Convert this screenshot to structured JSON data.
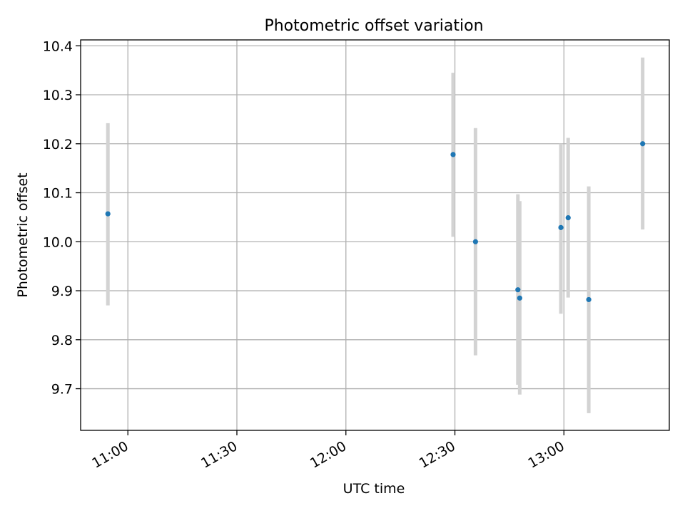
{
  "chart_data": {
    "type": "scatter",
    "title": "Photometric offset variation",
    "xlabel": "UTC time",
    "ylabel": "Photometric offset",
    "x_ticks": [
      "11:00",
      "11:30",
      "12:00",
      "12:30",
      "13:00"
    ],
    "y_ticks": [
      "9.7",
      "9.8",
      "9.9",
      "10.0",
      "10.1",
      "10.2",
      "10.3",
      "10.4"
    ],
    "xlim": [
      "10:47",
      "13:29"
    ],
    "ylim": [
      9.615,
      10.412
    ],
    "grid": true,
    "legend": "none",
    "colors": {
      "point": "#1f77b4",
      "errorbar": "#d3d3d3",
      "grid": "#b0b0b0"
    },
    "points": [
      {
        "x": "10:54:30",
        "y": 10.057,
        "err_low": 9.87,
        "err_high": 10.242
      },
      {
        "x": "12:29:30",
        "y": 10.178,
        "err_low": 10.01,
        "err_high": 10.345
      },
      {
        "x": "12:35:40",
        "y": 10.0,
        "err_low": 9.768,
        "err_high": 10.232
      },
      {
        "x": "12:47:20",
        "y": 9.902,
        "err_low": 9.708,
        "err_high": 10.097
      },
      {
        "x": "12:47:50",
        "y": 9.885,
        "err_low": 9.688,
        "err_high": 10.083
      },
      {
        "x": "12:59:10",
        "y": 10.029,
        "err_low": 9.853,
        "err_high": 10.2
      },
      {
        "x": "13:01:10",
        "y": 10.049,
        "err_low": 9.886,
        "err_high": 10.212
      },
      {
        "x": "13:06:50",
        "y": 9.882,
        "err_low": 9.65,
        "err_high": 10.113
      },
      {
        "x": "13:21:40",
        "y": 10.2,
        "err_low": 10.025,
        "err_high": 10.376
      }
    ]
  }
}
